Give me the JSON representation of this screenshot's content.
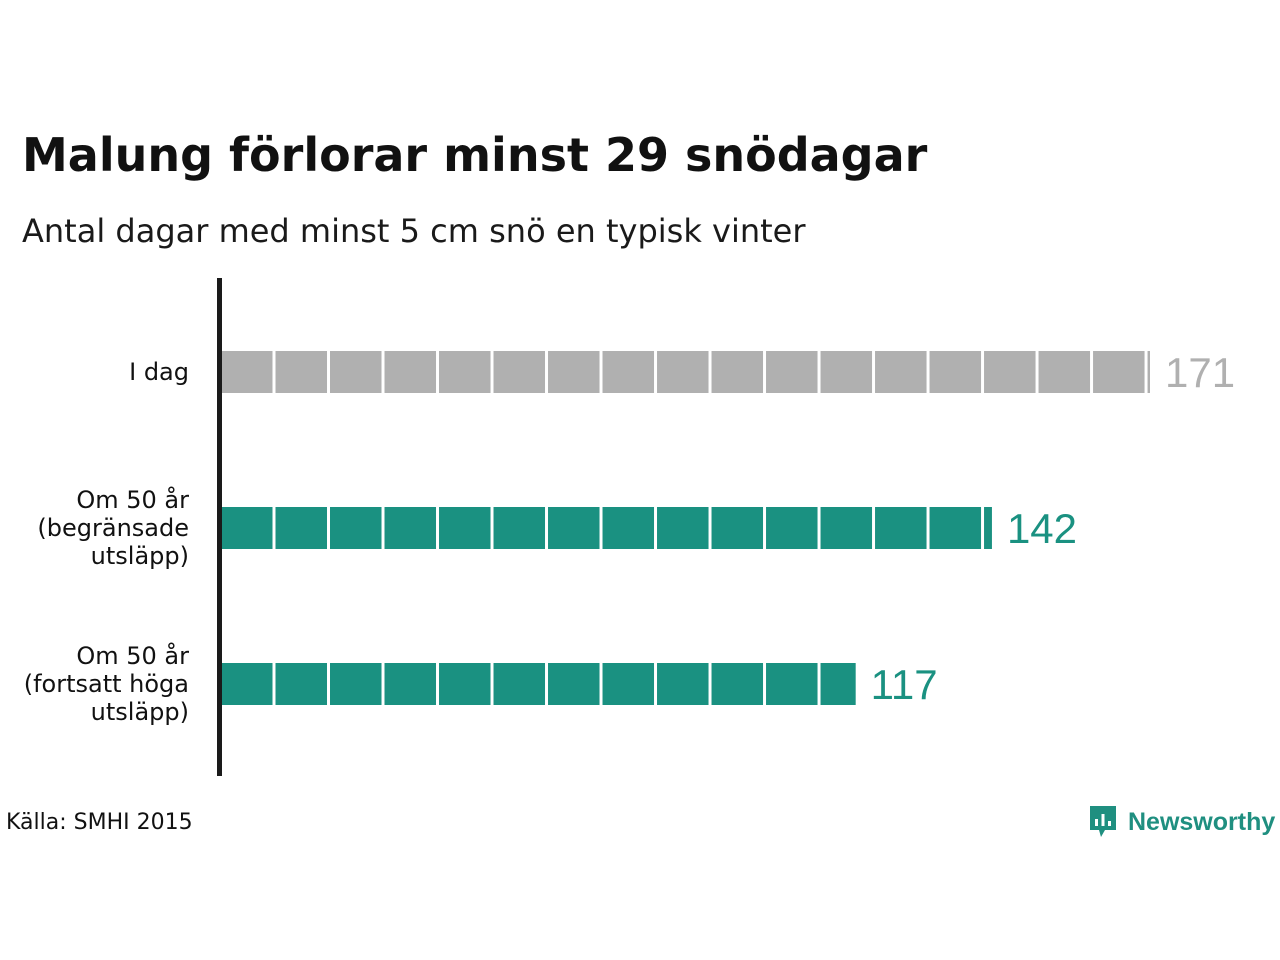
{
  "header": {
    "title": "Malung förlorar minst 29 snödagar",
    "subtitle": "Antal dagar med minst 5 cm snö en typisk vinter"
  },
  "chart_data": {
    "type": "bar",
    "orientation": "horizontal",
    "title": "Malung förlorar minst 29 snödagar",
    "subtitle": "Antal dagar med minst 5 cm snö en typisk vinter",
    "categories": [
      [
        "I dag"
      ],
      [
        "Om 50 år",
        "(begränsade",
        "utsläpp)"
      ],
      [
        "Om 50 år",
        "(fortsatt höga",
        "utsläpp)"
      ]
    ],
    "values": [
      171,
      142,
      117
    ],
    "value_labels": [
      "171",
      "142",
      "117"
    ],
    "segment_unit": 10,
    "xlim": [
      0,
      171
    ],
    "grid": false,
    "colors": [
      "#b0b0b0",
      "#1a9181",
      "#1a9181"
    ],
    "label_colors": [
      "#b0b0b0",
      "#1a9181",
      "#1a9181"
    ]
  },
  "footer": {
    "source": "Källa: SMHI 2015",
    "brand": "Newsworthy",
    "brand_color": "#1f8f80",
    "brand_icon": "newsworthy-chart-bubble-icon"
  }
}
